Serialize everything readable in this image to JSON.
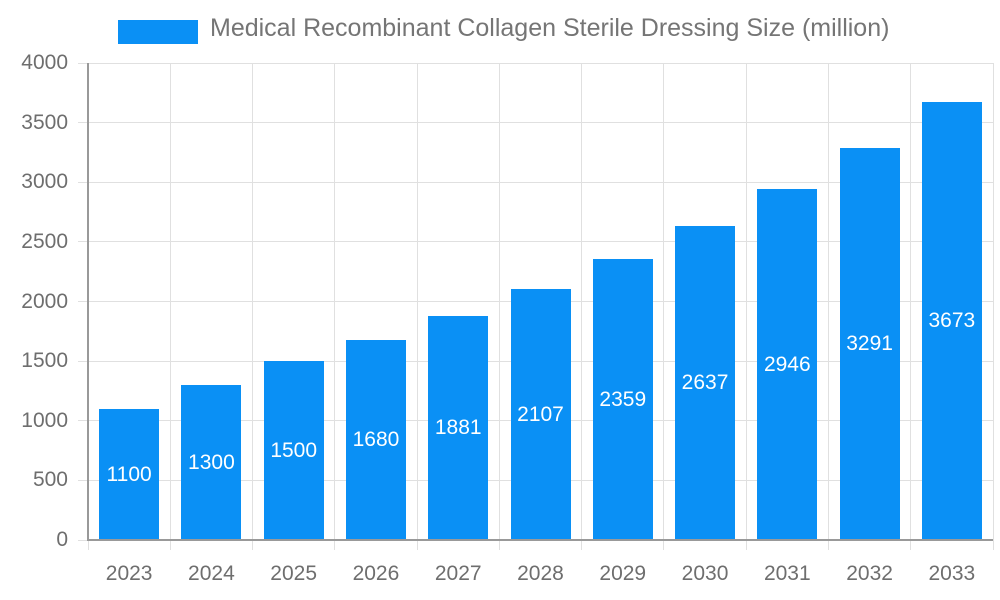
{
  "chart_data": {
    "type": "bar",
    "title": "Medical Recombinant Collagen Sterile Dressing Size (million)",
    "categories": [
      "2023",
      "2024",
      "2025",
      "2026",
      "2027",
      "2028",
      "2029",
      "2030",
      "2031",
      "2032",
      "2033"
    ],
    "values": [
      1100,
      1300,
      1500,
      1680,
      1881,
      2107,
      2359,
      2637,
      2946,
      3291,
      3673
    ],
    "xlabel": "",
    "ylabel": "",
    "ylim": [
      0,
      4000
    ],
    "yticks": [
      0,
      500,
      1000,
      1500,
      2000,
      2500,
      3000,
      3500,
      4000
    ],
    "grid": true,
    "legend_position": "top",
    "colors": {
      "bar": "#0A90F5",
      "bar_label": "#FFFFFF",
      "axis_text": "#6E6E6E",
      "title_text": "#757575",
      "gridline": "#E0E0E0",
      "axis_line": "#999999",
      "background": "#FFFFFF"
    }
  }
}
